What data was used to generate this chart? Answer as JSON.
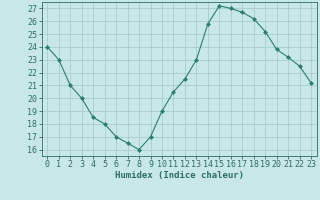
{
  "x": [
    0,
    1,
    2,
    3,
    4,
    5,
    6,
    7,
    8,
    9,
    10,
    11,
    12,
    13,
    14,
    15,
    16,
    17,
    18,
    19,
    20,
    21,
    22,
    23
  ],
  "y": [
    24,
    23,
    21,
    20,
    18.5,
    18,
    17,
    16.5,
    16,
    17,
    19,
    20.5,
    21.5,
    23,
    25.8,
    27.2,
    27,
    26.7,
    26.2,
    25.2,
    23.8,
    23.2,
    22.5,
    21.2
  ],
  "line_color": "#2e7d6e",
  "marker_color": "#2e7d6e",
  "bg_color": "#c8e8e8",
  "grid_color": "#a0c8c8",
  "footer_color": "#2e7d6e",
  "xlabel": "Humidex (Indice chaleur)",
  "ylabel_ticks": [
    16,
    17,
    18,
    19,
    20,
    21,
    22,
    23,
    24,
    25,
    26,
    27
  ],
  "xlim": [
    -0.5,
    23.5
  ],
  "ylim": [
    15.5,
    27.5
  ],
  "xticks": [
    0,
    1,
    2,
    3,
    4,
    5,
    6,
    7,
    8,
    9,
    10,
    11,
    12,
    13,
    14,
    15,
    16,
    17,
    18,
    19,
    20,
    21,
    22,
    23
  ],
  "tick_color": "#2e6e60",
  "label_fontsize": 6.5,
  "tick_fontsize": 6
}
